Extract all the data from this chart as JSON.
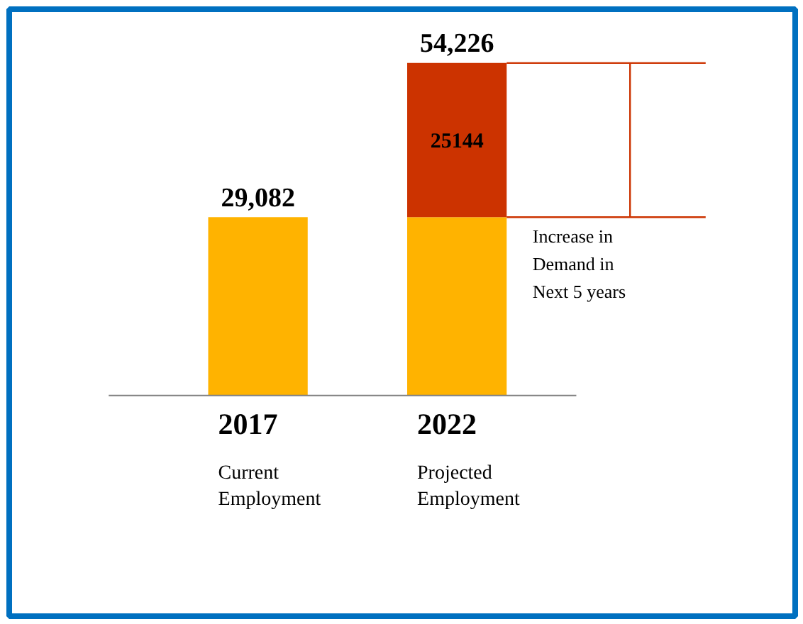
{
  "chart_data": {
    "type": "bar",
    "stacked": true,
    "categories": [
      "2017",
      "2022"
    ],
    "series": [
      {
        "color": "#ffb300",
        "values": [
          29082,
          29082
        ],
        "value_labels": [
          "29,082",
          null
        ]
      },
      {
        "color": "#cc3300",
        "values": [
          null,
          25144
        ],
        "value_labels": [
          null,
          "25144"
        ]
      }
    ],
    "totals": [
      null,
      "54,226"
    ],
    "ref_lines": [
      {
        "axis": "y",
        "value": 54226,
        "color": "#cc3300"
      },
      {
        "axis": "y",
        "value": 29082,
        "color": "#cc3300"
      }
    ],
    "annotations": [
      "Current\nEmployment",
      "Projected\nEmployment",
      "Increase in\nDemand in\nNext 5 years"
    ]
  }
}
